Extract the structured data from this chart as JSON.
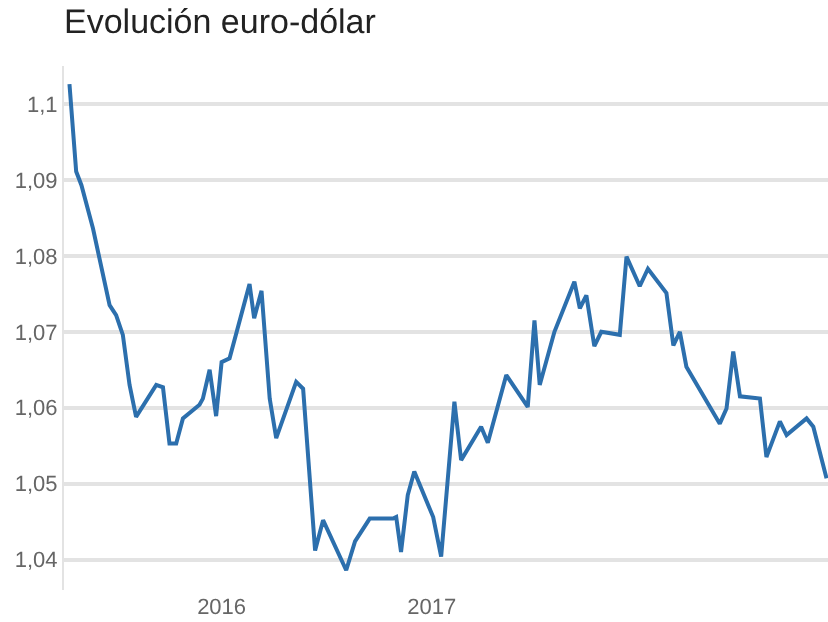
{
  "chart_data": {
    "type": "line",
    "title": "Evolución euro-dólar",
    "x": [
      2015.276,
      2015.308,
      2015.333,
      2015.388,
      2015.467,
      2015.498,
      2015.53,
      2015.562,
      2015.593,
      2015.689,
      2015.721,
      2015.752,
      2015.784,
      2015.816,
      2015.895,
      2015.911,
      2015.943,
      2015.974,
      2016.0,
      2016.038,
      2016.133,
      2016.155,
      2016.19,
      2016.229,
      2016.26,
      2016.355,
      2016.388,
      2016.445,
      2016.483,
      2016.593,
      2016.635,
      2016.705,
      2016.816,
      2016.831,
      2016.854,
      2016.886,
      2016.917,
      2017.007,
      2017.045,
      2017.108,
      2017.14,
      2017.235,
      2017.267,
      2017.355,
      2017.457,
      2017.489,
      2017.514,
      2017.584,
      2017.679,
      2017.705,
      2017.736,
      2017.774,
      2017.807,
      2017.895,
      2017.927,
      2017.99,
      2018.029,
      2018.117,
      2018.15,
      2018.181,
      2018.212,
      2018.371,
      2018.403,
      2018.435,
      2018.467,
      2018.562,
      2018.593,
      2018.657,
      2018.689,
      2018.784,
      2018.816,
      2018.879
    ],
    "series": [
      {
        "color": "#2c6fad",
        "values": [
          1.1026,
          1.0911,
          1.0893,
          1.0836,
          1.0735,
          1.0722,
          1.0696,
          1.063,
          1.0588,
          1.063,
          1.0627,
          1.0553,
          1.0553,
          1.0586,
          1.0604,
          1.0612,
          1.065,
          1.0589,
          1.066,
          1.0665,
          1.0763,
          1.0718,
          1.0754,
          1.0612,
          1.056,
          1.0634,
          1.0625,
          1.0412,
          1.0452,
          1.0386,
          1.0424,
          1.0454,
          1.0454,
          1.0456,
          1.041,
          1.0485,
          1.0516,
          1.0456,
          1.0404,
          1.0608,
          1.0531,
          1.0575,
          1.0554,
          1.0643,
          1.0601,
          1.0715,
          1.063,
          1.07,
          1.0766,
          1.0731,
          1.0748,
          1.0681,
          1.07,
          1.0696,
          1.0799,
          1.076,
          1.0783,
          1.0751,
          1.0682,
          1.07,
          1.0654,
          1.0579,
          1.0599,
          1.0674,
          1.0615,
          1.0612,
          1.0535,
          1.0582,
          1.0564,
          1.0586,
          1.0575,
          1.0507
        ]
      }
    ],
    "xlim": [
      2015.25,
      2018.886
    ],
    "xticks": [
      2016,
      2017
    ],
    "ylim": [
      1.036,
      1.105
    ],
    "yticks": [
      {
        "value": 1.04,
        "label": "1,04"
      },
      {
        "value": 1.05,
        "label": "1,05"
      },
      {
        "value": 1.06,
        "label": "1,06"
      },
      {
        "value": 1.07,
        "label": "1,07"
      },
      {
        "value": 1.08,
        "label": "1,08"
      },
      {
        "value": 1.09,
        "label": "1,09"
      },
      {
        "value": 1.1,
        "label": "1,1"
      }
    ],
    "grid": "y",
    "marker": "none",
    "line_style": "solid"
  }
}
